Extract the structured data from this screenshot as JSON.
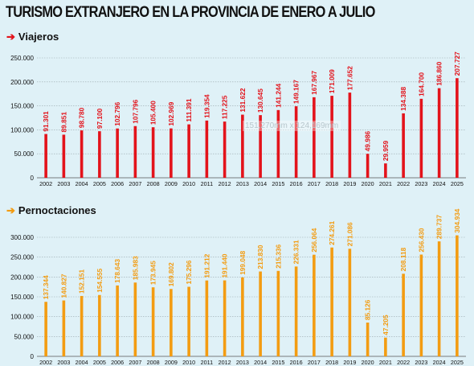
{
  "title": "TURISMO EXTRANJERO EN LA PROVINCIA DE ENERO A JULIO",
  "watermark": "151,270mm x 124,169mm",
  "chart_data": [
    {
      "type": "bar",
      "title": "Viajeros",
      "color": "#e3131b",
      "arrow_color": "#e3131b",
      "categories": [
        "2002",
        "2003",
        "2004",
        "2005",
        "2006",
        "2007",
        "2008",
        "2009",
        "2010",
        "2011",
        "2012",
        "2013",
        "2014",
        "2015",
        "2016",
        "2017",
        "2018",
        "2019",
        "2020",
        "2021",
        "2022",
        "2023",
        "2024",
        "2025"
      ],
      "values": [
        91301,
        89851,
        98780,
        97100,
        102796,
        107796,
        105400,
        102969,
        111391,
        119354,
        117225,
        131622,
        130645,
        141244,
        149167,
        167967,
        171009,
        177652,
        49986,
        29959,
        134388,
        164700,
        186860,
        207727
      ],
      "labels": [
        "91.301",
        "89.851",
        "98.780",
        "97.100",
        "102.796",
        "107.796",
        "105.400",
        "102.969",
        "111.391",
        "119.354",
        "117.225",
        "131.622",
        "130.645",
        "141.244",
        "149.167",
        "167.967",
        "171.009",
        "177.652",
        "49.986",
        "29.959",
        "134.388",
        "164.700",
        "186.860",
        "207.727"
      ],
      "ylim": [
        0,
        250000
      ],
      "yticks": [
        0,
        50000,
        100000,
        150000,
        200000,
        250000
      ],
      "ytick_labels": [
        "0",
        "50.000",
        "100.000",
        "150.000",
        "200.000",
        "250.000"
      ],
      "grid": true
    },
    {
      "type": "bar",
      "title": "Pernoctaciones",
      "color": "#f39c12",
      "arrow_color": "#f39c12",
      "categories": [
        "2002",
        "2003",
        "2004",
        "2005",
        "2006",
        "2007",
        "2008",
        "2009",
        "2010",
        "2011",
        "2012",
        "2013",
        "2014",
        "2015",
        "2016",
        "2017",
        "2018",
        "2019",
        "2020",
        "2021",
        "2022",
        "2023",
        "2024",
        "2025"
      ],
      "values": [
        137344,
        140827,
        152151,
        154555,
        178643,
        185983,
        173945,
        169802,
        175296,
        191212,
        191440,
        199048,
        213830,
        215336,
        226331,
        256064,
        274261,
        271086,
        85126,
        47205,
        208118,
        256430,
        289737,
        304934
      ],
      "labels": [
        "137.344",
        "140.827",
        "152.151",
        "154.555",
        "178.643",
        "185.983",
        "173.945",
        "169.802",
        "175.296",
        "191.212",
        "191.440",
        "199.048",
        "213.830",
        "215.336",
        "226.331",
        "256.064",
        "274.261",
        "271.086",
        "85.126",
        "47.205",
        "208.118",
        "256.430",
        "289.737",
        "304.934"
      ],
      "ylim": [
        0,
        300000
      ],
      "yticks": [
        0,
        50000,
        100000,
        150000,
        200000,
        250000,
        300000
      ],
      "ytick_labels": [
        "0",
        "50.000",
        "100.000",
        "150.000",
        "200.000",
        "250.000",
        "300.000"
      ],
      "grid": true
    }
  ]
}
